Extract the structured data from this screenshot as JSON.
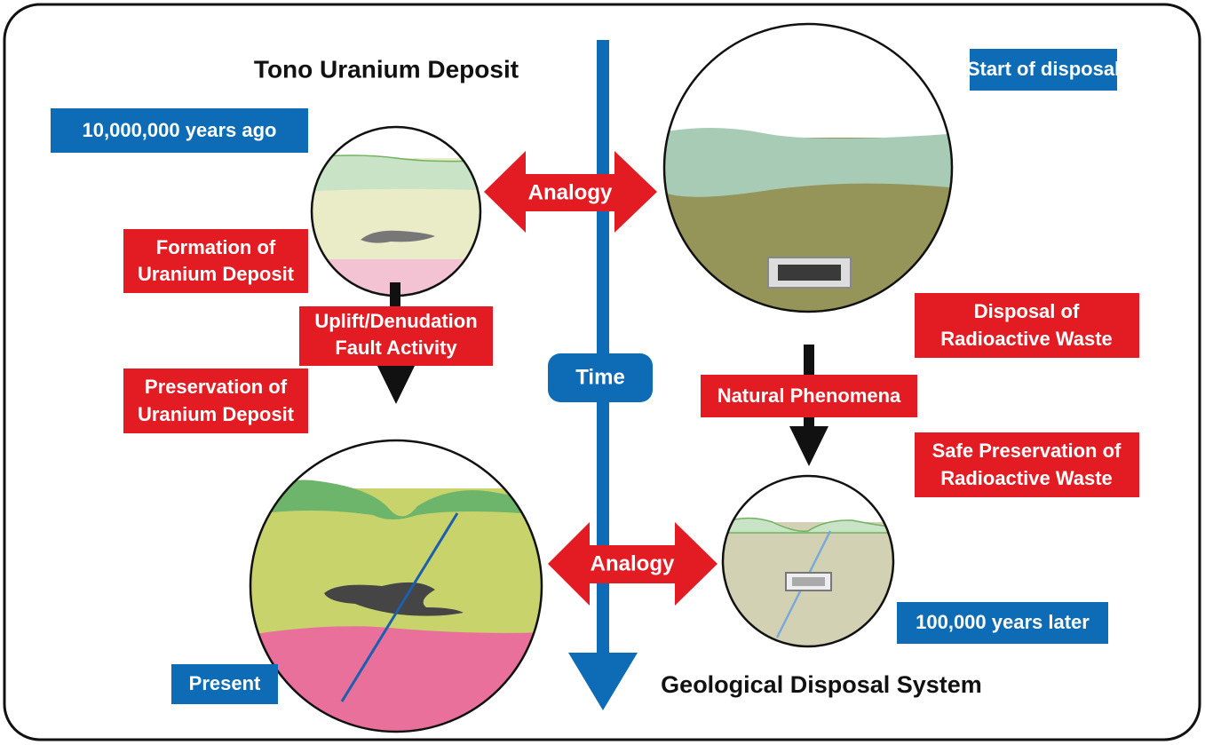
{
  "headings": {
    "left": "Tono Uranium Deposit",
    "right": "Geological Disposal System"
  },
  "time_axis": {
    "label": "Time"
  },
  "analogies": [
    "Analogy",
    "Analogy"
  ],
  "stages": {
    "past": "10,000,000 years ago",
    "present": "Present",
    "start": "Start of disposal",
    "later": "100,000 years later"
  },
  "processes": {
    "formation": [
      "Formation of",
      "Uranium Deposit"
    ],
    "uplift": [
      "Uplift/Denudation",
      "Fault Activity"
    ],
    "preservation": [
      "Preservation of",
      "Uranium Deposit"
    ],
    "disposal": [
      "Disposal of",
      "Radioactive Waste"
    ],
    "natural": [
      "Natural Phenomena"
    ],
    "safe": [
      "Safe Preservation of",
      "Radioactive Waste"
    ]
  }
}
